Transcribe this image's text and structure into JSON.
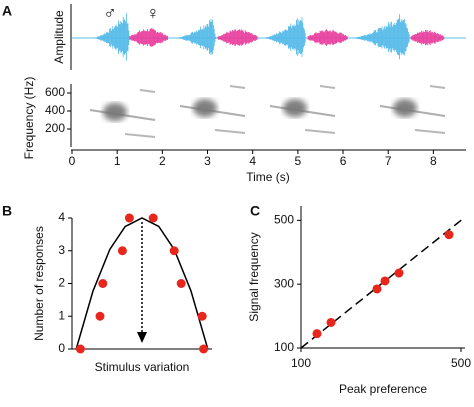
{
  "panel_labels": [
    "A",
    "B",
    "C"
  ],
  "chart_data": [
    {
      "type": "waveform",
      "ylabel": "Amplitude",
      "annotations": [
        "♂",
        "♀"
      ]
    },
    {
      "type": "spectrogram",
      "ylabel": "Frequency (Hz)",
      "xlabel": "Time (s)",
      "xlim": [
        0,
        8.7
      ],
      "xticks": [
        0,
        1,
        2,
        3,
        4,
        5,
        6,
        7,
        8
      ],
      "ylim": [
        0,
        700
      ],
      "yticks": [
        200,
        400,
        600
      ]
    },
    {
      "type": "scatter",
      "ylabel": "Number of responses",
      "xlabel": "Stimulus variation",
      "x": [
        0.06,
        0.2,
        0.22,
        0.36,
        0.41,
        0.58,
        0.73,
        0.78,
        0.93,
        0.94
      ],
      "values": [
        0,
        1,
        2,
        3,
        4,
        4,
        3,
        2,
        1,
        0
      ],
      "color": "#e8261c",
      "xlim": [
        0,
        1
      ],
      "ylim": [
        0,
        4
      ],
      "yticks": [
        0,
        1,
        2,
        3,
        4
      ],
      "curve": {
        "x": [
          0.03,
          0.15,
          0.27,
          0.38,
          0.5,
          0.62,
          0.73,
          0.85,
          0.97
        ],
        "values": [
          0,
          1.77,
          3.04,
          3.74,
          4,
          3.74,
          3.04,
          1.77,
          0
        ]
      }
    },
    {
      "type": "scatter",
      "ylabel": "Signal frequency",
      "xlabel": "Peak preference",
      "x": [
        140,
        175,
        290,
        310,
        345,
        470
      ],
      "values": [
        145,
        180,
        285,
        310,
        335,
        455
      ],
      "color": "#e8261c",
      "xlim": [
        100,
        510
      ],
      "ylim": [
        100,
        545
      ],
      "xticks": [
        100,
        500
      ],
      "yticks": [
        100,
        300,
        500
      ],
      "line": {
        "x": [
          100,
          510
        ],
        "values": [
          100,
          510
        ]
      }
    }
  ]
}
